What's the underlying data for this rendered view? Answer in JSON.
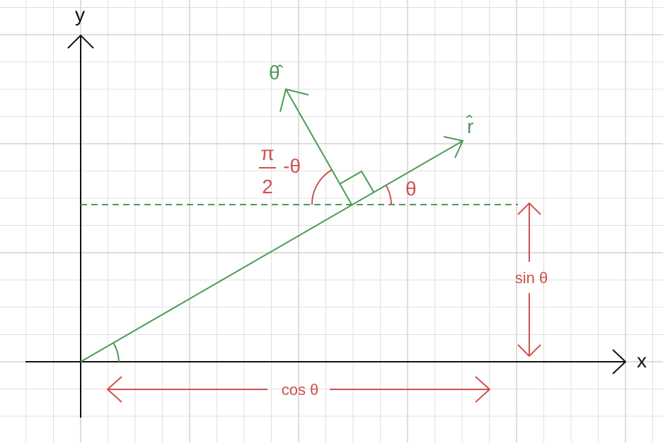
{
  "colors": {
    "grid_minor": "#e0e0e0",
    "grid_major": "#bdbdbd",
    "axis": "#111111",
    "green": "#4a9a55",
    "red": "#d05050"
  },
  "axes": {
    "x_label": "x",
    "y_label": "y"
  },
  "vectors": {
    "r_hat_label": "r̂",
    "theta_hat_label": "θ̂"
  },
  "angles": {
    "theta_label": "θ",
    "pi_over_2_numerator": "π",
    "pi_over_2_denominator": "2",
    "pi_over_2_suffix": "-θ"
  },
  "measures": {
    "cos_label": "cos θ",
    "sin_label": "sin θ"
  }
}
